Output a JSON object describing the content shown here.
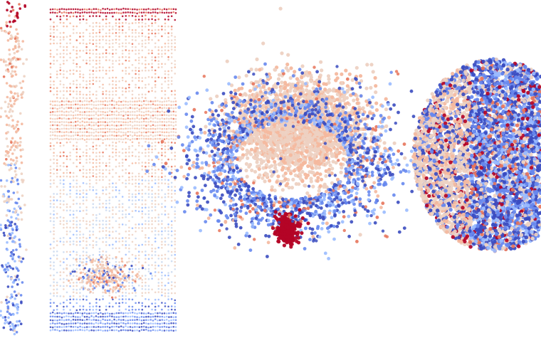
{
  "figure": {
    "description_visible_text": "",
    "palette": {
      "deep_blue": "#3b4cc0",
      "mid_blue": "#6788ee",
      "light_blue": "#9abbff",
      "pale_blue": "#c9d8ef",
      "pale_peach": "#edd1c2",
      "peach": "#f4b89e",
      "salmon": "#e7745b",
      "dark_red": "#b40426"
    },
    "panels": [
      {
        "id": "panel-1",
        "kind": "scatter-embedding",
        "style": "chain-strands"
      },
      {
        "id": "panel-2",
        "kind": "scatter-embedding",
        "style": "grid-rows"
      },
      {
        "id": "panel-3",
        "kind": "scatter-embedding",
        "style": "cluster-cloud"
      },
      {
        "id": "panel-4",
        "kind": "scatter-embedding",
        "style": "disc-cloud"
      }
    ]
  }
}
